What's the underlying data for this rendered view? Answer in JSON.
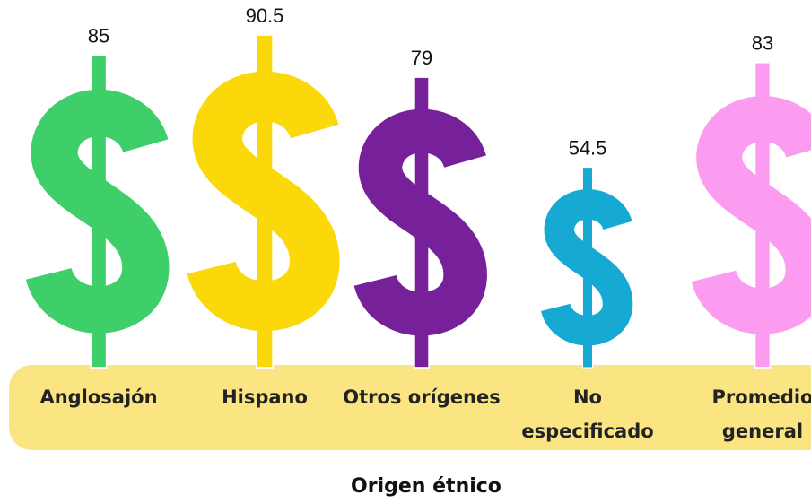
{
  "chart_data": {
    "type": "pictograph",
    "categories": [
      "Anglosajón",
      "Hispano",
      "Otros orígenes",
      "No especificado",
      "Promedio general"
    ],
    "values": [
      85,
      90.5,
      79,
      54.5,
      83
    ],
    "colors": [
      "#3ecf6a",
      "#fbd80a",
      "#76209a",
      "#15a9d3",
      "#fb9cf0"
    ],
    "x_label": "Origen étnico"
  }
}
